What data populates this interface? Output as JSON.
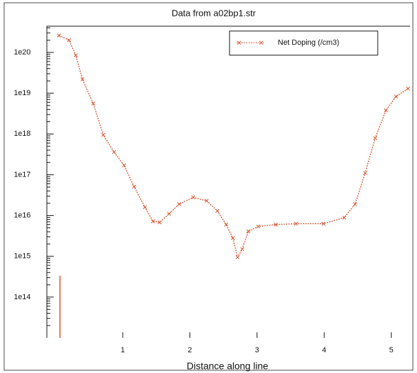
{
  "chart_data": {
    "type": "line",
    "title": "Data from a02bp1.str",
    "x_label": "Distance along line",
    "legend_position": "upper right",
    "log_y": true,
    "xlim": [
      -0.13,
      5.28
    ],
    "ylim": [
      10000000000000.0,
      4.4e+20
    ],
    "xticks": [
      1,
      2,
      3,
      4,
      5
    ],
    "yticks": [
      {
        "value": 100000000000000.0,
        "label": "1e14"
      },
      {
        "value": 1000000000000000.0,
        "label": "1e15"
      },
      {
        "value": 1e+16,
        "label": "1e16"
      },
      {
        "value": 1e+17,
        "label": "1e17"
      },
      {
        "value": 1e+18,
        "label": "1e18"
      },
      {
        "value": 1e+19,
        "label": "1e19"
      },
      {
        "value": 1e+20,
        "label": "1e20"
      }
    ],
    "x": [
      0.05,
      0.2,
      0.3,
      0.4,
      0.56,
      0.71,
      0.87,
      1.02,
      1.17,
      1.33,
      1.45,
      1.55,
      1.69,
      1.84,
      2.05,
      2.25,
      2.41,
      2.54,
      2.64,
      2.71,
      2.78,
      2.87,
      3.02,
      3.28,
      3.58,
      3.99,
      4.3,
      4.46,
      4.61,
      4.76,
      4.92,
      5.07,
      5.25
    ],
    "series": [
      {
        "name": "Net Doping (/cm3)",
        "color": "#d4552e",
        "values": [
          2.6e+20,
          2e+20,
          8.5e+19,
          2.2e+19,
          5.6e+18,
          9.5e+17,
          3.6e+17,
          1.7e+17,
          5.1e+16,
          1.6e+16,
          7200000000000000.0,
          6800000000000000.0,
          1.1e+16,
          1.9e+16,
          2.8e+16,
          2.3e+16,
          1.3e+16,
          6000000000000000.0,
          2800000000000000.0,
          950000000000000.0,
          1500000000000000.0,
          4100000000000000.0,
          5400000000000000.0,
          6000000000000000.0,
          6300000000000000.0,
          6300000000000000.0,
          8900000000000000.0,
          1.9e+16,
          1.1e+17,
          7.9e+17,
          3.8e+18,
          8.3e+18,
          1.3e+19
        ]
      }
    ]
  }
}
